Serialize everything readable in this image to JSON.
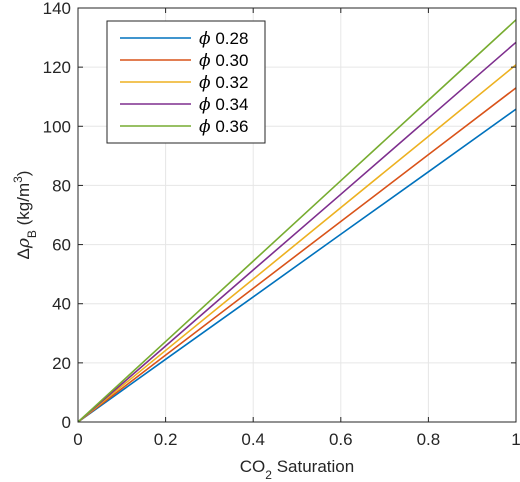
{
  "chart_data": {
    "type": "line",
    "xlabel": {
      "prefix": "CO",
      "sub": "2",
      "suffix": " Saturation"
    },
    "ylabel": {
      "delta": "Δ",
      "rho": "ρ",
      "sub": "B",
      "unit_pre": " (kg/m",
      "sup": "3",
      "unit_post": ")"
    },
    "xlim": [
      0,
      1
    ],
    "ylim": [
      0,
      140
    ],
    "xticks": [
      0,
      0.2,
      0.4,
      0.6,
      0.8,
      1
    ],
    "xtick_labels": [
      "0",
      "0.2",
      "0.4",
      "0.6",
      "0.8",
      "1"
    ],
    "yticks": [
      0,
      20,
      40,
      60,
      80,
      100,
      120,
      140
    ],
    "ytick_labels": [
      "0",
      "20",
      "40",
      "60",
      "80",
      "100",
      "120",
      "140"
    ],
    "grid": true,
    "legend_position": "top-left",
    "legend_symbol": "ϕ",
    "x": [
      0,
      0.2,
      0.4,
      0.6,
      0.8,
      1.0
    ],
    "series": [
      {
        "name": "0.28",
        "color": "#0072BD",
        "values": [
          0,
          21.2,
          42.3,
          63.5,
          84.6,
          105.8
        ]
      },
      {
        "name": "0.30",
        "color": "#D95319",
        "values": [
          0,
          22.6,
          45.2,
          67.8,
          90.4,
          113.0
        ]
      },
      {
        "name": "0.32",
        "color": "#EDB120",
        "values": [
          0,
          24.2,
          48.3,
          72.5,
          96.6,
          120.8
        ]
      },
      {
        "name": "0.34",
        "color": "#7E2F8E",
        "values": [
          0,
          25.7,
          51.4,
          77.0,
          102.7,
          128.4
        ]
      },
      {
        "name": "0.36",
        "color": "#77AC30",
        "values": [
          0,
          27.2,
          54.4,
          81.6,
          108.8,
          136.0
        ]
      }
    ]
  }
}
